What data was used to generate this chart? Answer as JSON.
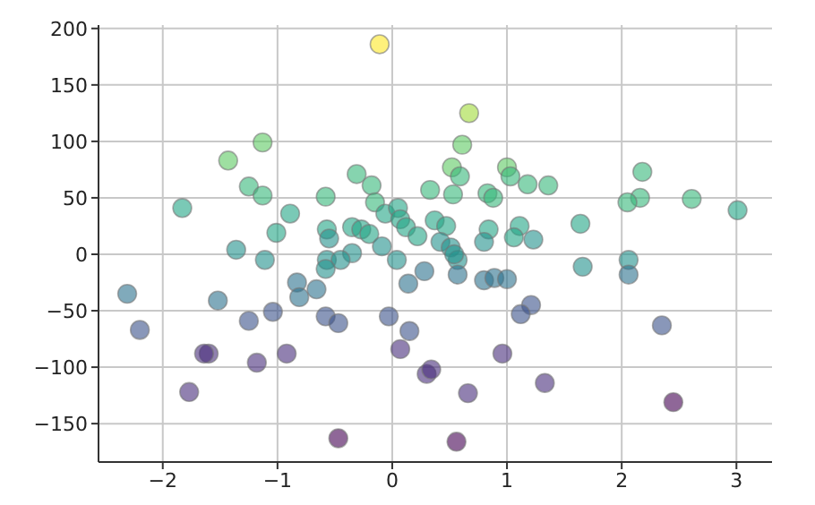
{
  "chart_data": {
    "type": "scatter",
    "marker": "circle",
    "grid": true,
    "xlim": [
      -2.56,
      3.31
    ],
    "ylim": [
      -184,
      203
    ],
    "xticks": [
      {
        "value": -2,
        "label": "−2"
      },
      {
        "value": -1,
        "label": "−1"
      },
      0,
      1,
      2,
      3
    ],
    "yticks": [
      {
        "value": -150,
        "label": "−150"
      },
      {
        "value": -100,
        "label": "−100"
      },
      {
        "value": -50,
        "label": "−50"
      },
      0,
      50,
      100,
      150,
      200
    ],
    "x": [
      -0.11,
      -1.13,
      -1.43,
      -1.25,
      -1.13,
      -1.83,
      -0.58,
      -0.31,
      -0.18,
      -0.15,
      -0.06,
      0.05,
      0.07,
      0.12,
      0.22,
      0.33,
      -0.89,
      -1.01,
      -0.57,
      -0.55,
      -0.35,
      -0.27,
      -0.2,
      -1.36,
      -0.09,
      0.67,
      0.61,
      0.52,
      0.59,
      1.0,
      1.03,
      1.18,
      1.36,
      0.53,
      0.83,
      0.88,
      2.18,
      2.16,
      2.05,
      2.61,
      3.01,
      1.64,
      0.37,
      0.47,
      0.84,
      1.11,
      1.06,
      1.23,
      0.8,
      0.42,
      0.51,
      -1.11,
      -0.35,
      0.04,
      -0.57,
      -0.45,
      -0.58,
      0.28,
      -0.83,
      -0.81,
      -0.66,
      0.14,
      -2.31,
      -1.52,
      -1.04,
      -1.25,
      -0.58,
      -0.47,
      -0.03,
      -2.2,
      0.15,
      0.07,
      -1.6,
      -1.64,
      -1.18,
      -0.92,
      -1.77,
      -0.47,
      0.3,
      0.57,
      0.57,
      0.54,
      0.8,
      0.89,
      1.0,
      1.66,
      2.06,
      2.06,
      1.21,
      1.12,
      2.35,
      0.96,
      0.34,
      0.66,
      1.33,
      2.45,
      0.56
    ],
    "values": [
      186,
      99,
      83,
      60,
      52,
      41,
      51,
      71,
      61,
      46,
      36,
      41,
      31,
      24,
      16,
      57,
      36,
      19,
      22,
      14,
      24,
      22,
      18,
      4,
      7,
      125,
      97,
      77,
      69,
      77,
      69,
      62,
      61,
      53,
      54,
      50,
      73,
      50,
      46,
      49,
      39,
      27,
      30,
      25,
      22,
      25,
      15,
      13,
      11,
      11,
      6,
      -5,
      1,
      -5,
      -5,
      -5,
      -13,
      -15,
      -25,
      -38,
      -31,
      -26,
      -35,
      -41,
      -51,
      -59,
      -55,
      -61,
      -55,
      -67,
      -68,
      -84,
      -88,
      -88,
      -96,
      -88,
      -122,
      -163,
      -106,
      -5,
      -18,
      0,
      -23,
      -21,
      -22,
      -11,
      -5,
      -18,
      -45,
      -53,
      -63,
      -88,
      -102,
      -123,
      -114,
      -131,
      -166
    ],
    "colors": [
      "#fde725",
      "#5ec962",
      "#5ec962",
      "#35b779",
      "#35b779",
      "#21a585",
      "#35b779",
      "#35b779",
      "#35b779",
      "#35b779",
      "#21a585",
      "#21a585",
      "#21a585",
      "#21a585",
      "#21a585",
      "#35b779",
      "#21a585",
      "#21a585",
      "#21a585",
      "#21918c",
      "#21a585",
      "#21a585",
      "#21a585",
      "#21918c",
      "#21918c",
      "#a0da39",
      "#5ec962",
      "#5ec962",
      "#35b779",
      "#5ec962",
      "#35b779",
      "#35b779",
      "#35b779",
      "#35b779",
      "#35b779",
      "#35b779",
      "#35b779",
      "#35b779",
      "#35b779",
      "#35b779",
      "#21a585",
      "#21a585",
      "#21a585",
      "#21a585",
      "#21a585",
      "#21a585",
      "#21a585",
      "#21918c",
      "#21918c",
      "#21918c",
      "#21918c",
      "#21918c",
      "#21918c",
      "#21918c",
      "#21918c",
      "#21918c",
      "#21918c",
      "#2c728e",
      "#2c728e",
      "#2c728e",
      "#2c728e",
      "#2c728e",
      "#2c728e",
      "#2c728e",
      "#3b528b",
      "#3b528b",
      "#3b528b",
      "#3b528b",
      "#3b528b",
      "#3b528b",
      "#3b528b",
      "#472d7b",
      "#472d7b",
      "#472d7b",
      "#472d7b",
      "#472d7b",
      "#472d7b",
      "#440154",
      "#472d7b",
      "#21918c",
      "#2c728e",
      "#21918c",
      "#2c728e",
      "#2c728e",
      "#2c728e",
      "#21918c",
      "#21918c",
      "#2c728e",
      "#3b528b",
      "#3b528b",
      "#3b528b",
      "#472d7b",
      "#472d7b",
      "#472d7b",
      "#472d7b",
      "#440154",
      "#440154"
    ]
  }
}
